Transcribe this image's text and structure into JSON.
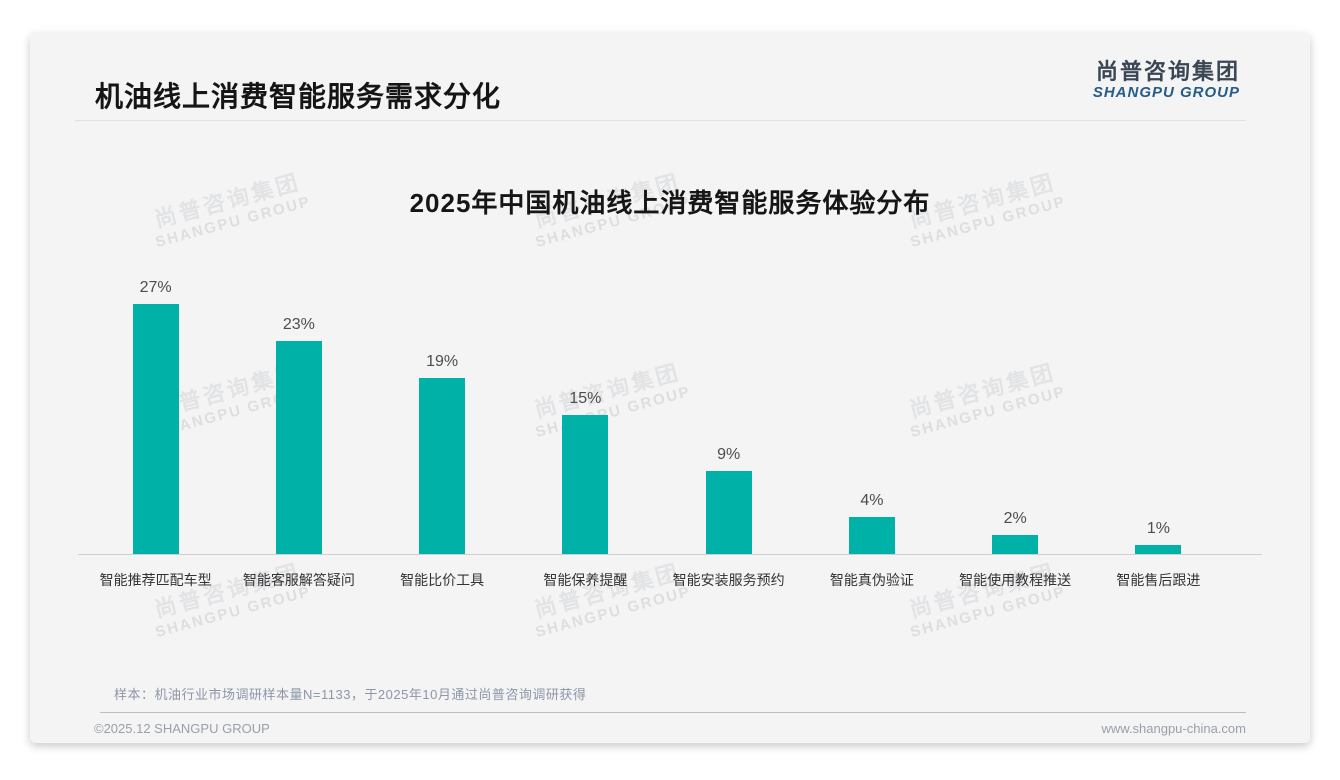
{
  "header": {
    "title": "机油线上消费智能服务需求分化"
  },
  "logo": {
    "cn": "尚普咨询集团",
    "en": "SHANGPU GROUP"
  },
  "watermark": {
    "cn": "尚普咨询集团",
    "en": "SHANGPU GROUP"
  },
  "chart_data": {
    "type": "bar",
    "title": "2025年中国机油线上消费智能服务体验分布",
    "categories": [
      "智能推荐匹配车型",
      "智能客服解答疑问",
      "智能比价工具",
      "智能保养提醒",
      "智能安装服务预约",
      "智能真伪验证",
      "智能使用教程推送",
      "智能售后跟进"
    ],
    "values": [
      27,
      23,
      19,
      15,
      9,
      4,
      2,
      1
    ],
    "value_labels": [
      "27%",
      "23%",
      "19%",
      "15%",
      "9%",
      "4%",
      "2%",
      "1%"
    ],
    "unit": "%",
    "xlabel": "",
    "ylabel": "",
    "ylim": [
      0,
      30
    ],
    "grid": false,
    "legend": false,
    "bar_color": "#00b1a8"
  },
  "footnote": {
    "text": "样本：机油行业市场调研样本量N=1133，于2025年10月通过尚普咨询调研获得"
  },
  "footer": {
    "left": "©2025.12 SHANGPU GROUP",
    "right": "www.shangpu-china.com"
  }
}
